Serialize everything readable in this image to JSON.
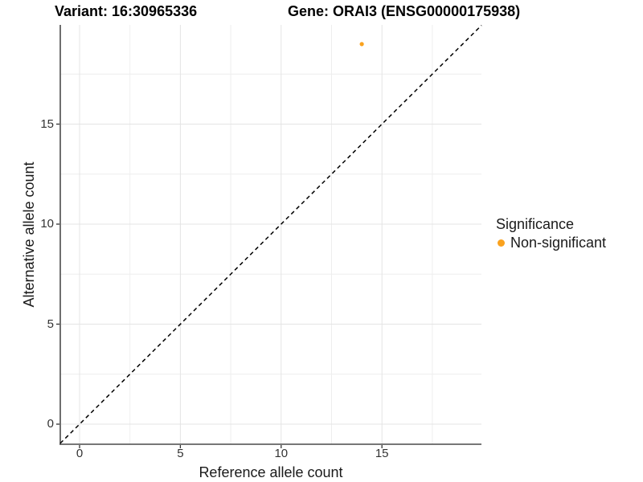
{
  "titles": {
    "variant": "Variant: 16:30965336",
    "gene": "Gene: ORAI3 (ENSG00000175938)"
  },
  "axis_titles": {
    "x": "Reference allele count",
    "y": "Alternative allele count"
  },
  "legend": {
    "title": "Significance",
    "items": [
      {
        "label": "Non-significant",
        "color": "#FAA21E"
      }
    ]
  },
  "colors": {
    "point": "#FAA21E",
    "grid_major": "#E4E4E4",
    "grid_minor": "#EEEEEE",
    "axis_line": "#4a4a4a",
    "tick_mark": "#333333",
    "reference_line": "#000000"
  },
  "chart_data": {
    "type": "scatter",
    "title_left": "Variant: 16:30965336",
    "title_right": "Gene: ORAI3 (ENSG00000175938)",
    "xlabel": "Reference allele count",
    "ylabel": "Alternative allele count",
    "xlim": [
      -0.96,
      19.94
    ],
    "ylim": [
      -1.0,
      19.96
    ],
    "x_ticks": [
      0,
      5,
      10,
      15
    ],
    "y_ticks": [
      0,
      5,
      10,
      15
    ],
    "minor_grid_step": 2.5,
    "grid": true,
    "points": [
      {
        "x": 14,
        "y": 19,
        "series": "Non-significant",
        "color": "#FAA21E"
      }
    ],
    "reference_line": {
      "type": "identity",
      "equation": "y = x",
      "style": "dashed",
      "color": "#000000"
    },
    "legend": {
      "title": "Significance",
      "position": "right",
      "entries": [
        {
          "label": "Non-significant",
          "color": "#FAA21E"
        }
      ]
    }
  }
}
